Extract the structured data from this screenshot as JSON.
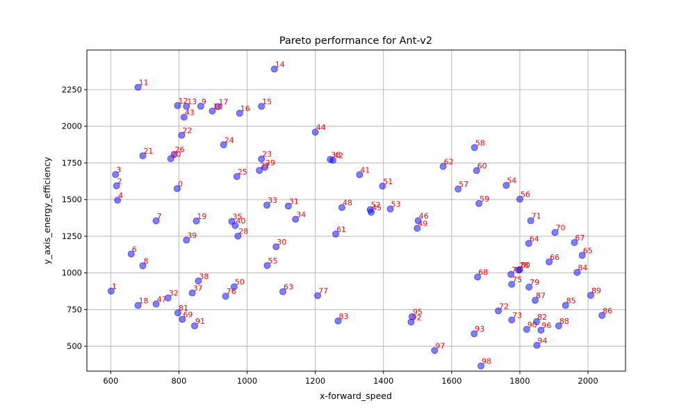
{
  "chart_data": {
    "type": "scatter",
    "title": "Pareto performance for Ant-v2",
    "xlabel": "x-forward_speed",
    "ylabel": "y_axis_energy_efficiency",
    "xlim": [
      530,
      2110
    ],
    "ylim": [
      330,
      2520
    ],
    "xticks": [
      600,
      800,
      1000,
      1200,
      1400,
      1600,
      1800,
      2000
    ],
    "yticks": [
      500,
      750,
      1000,
      1250,
      1500,
      1750,
      2000,
      2250
    ],
    "grid": true,
    "marker_color": "#0000ff",
    "label_color": "#ff0000",
    "points": [
      {
        "label": "0",
        "x": 795,
        "y": 1575
      },
      {
        "label": "1",
        "x": 601,
        "y": 876
      },
      {
        "label": "2",
        "x": 617,
        "y": 1594
      },
      {
        "label": "3",
        "x": 614,
        "y": 1671
      },
      {
        "label": "4",
        "x": 620,
        "y": 1496
      },
      {
        "label": "6",
        "x": 660,
        "y": 1129
      },
      {
        "label": "7",
        "x": 733,
        "y": 1355
      },
      {
        "label": "8",
        "x": 694,
        "y": 1049
      },
      {
        "label": "9",
        "x": 864,
        "y": 2137
      },
      {
        "label": "10",
        "x": 898,
        "y": 2104
      },
      {
        "label": "11",
        "x": 680,
        "y": 2266
      },
      {
        "label": "12",
        "x": 796,
        "y": 2141
      },
      {
        "label": "13",
        "x": 822,
        "y": 2136
      },
      {
        "label": "15",
        "x": 1042,
        "y": 2136
      },
      {
        "label": "14",
        "x": 1080,
        "y": 2390
      },
      {
        "label": "16",
        "x": 978,
        "y": 2089
      },
      {
        "label": "17",
        "x": 914,
        "y": 2134
      },
      {
        "label": "18",
        "x": 680,
        "y": 778
      },
      {
        "label": "19",
        "x": 851,
        "y": 1354
      },
      {
        "label": "20",
        "x": 776,
        "y": 1779
      },
      {
        "label": "21",
        "x": 694,
        "y": 1799
      },
      {
        "label": "22",
        "x": 808,
        "y": 1939
      },
      {
        "label": "23",
        "x": 1042,
        "y": 1777
      },
      {
        "label": "24",
        "x": 931,
        "y": 1874
      },
      {
        "label": "25",
        "x": 970,
        "y": 1657
      },
      {
        "label": "26",
        "x": 786,
        "y": 1808
      },
      {
        "label": "27",
        "x": 1036,
        "y": 1699
      },
      {
        "label": "28",
        "x": 973,
        "y": 1251
      },
      {
        "label": "29",
        "x": 1052,
        "y": 1720
      },
      {
        "label": "30",
        "x": 1085,
        "y": 1178
      },
      {
        "label": "31",
        "x": 1121,
        "y": 1456
      },
      {
        "label": "32",
        "x": 768,
        "y": 829
      },
      {
        "label": "33",
        "x": 1058,
        "y": 1462
      },
      {
        "label": "34",
        "x": 1142,
        "y": 1366
      },
      {
        "label": "35",
        "x": 955,
        "y": 1351
      },
      {
        "label": "36",
        "x": 1244,
        "y": 1774
      },
      {
        "label": "37",
        "x": 839,
        "y": 863
      },
      {
        "label": "38",
        "x": 857,
        "y": 945
      },
      {
        "label": "39",
        "x": 822,
        "y": 1224
      },
      {
        "label": "40",
        "x": 965,
        "y": 1323
      },
      {
        "label": "41",
        "x": 1330,
        "y": 1670
      },
      {
        "label": "42",
        "x": 1252,
        "y": 1768
      },
      {
        "label": "43",
        "x": 815,
        "y": 2062
      },
      {
        "label": "44",
        "x": 1200,
        "y": 1960
      },
      {
        "label": "45",
        "x": 1364,
        "y": 1414
      },
      {
        "label": "46",
        "x": 1502,
        "y": 1356
      },
      {
        "label": "47",
        "x": 733,
        "y": 788
      },
      {
        "label": "48",
        "x": 1278,
        "y": 1446
      },
      {
        "label": "49",
        "x": 1499,
        "y": 1304
      },
      {
        "label": "50",
        "x": 962,
        "y": 905
      },
      {
        "label": "51",
        "x": 1397,
        "y": 1592
      },
      {
        "label": "52",
        "x": 1361,
        "y": 1431
      },
      {
        "label": "53",
        "x": 1420,
        "y": 1436
      },
      {
        "label": "54",
        "x": 1760,
        "y": 1597
      },
      {
        "label": "55",
        "x": 1059,
        "y": 1050
      },
      {
        "label": "56",
        "x": 1800,
        "y": 1503
      },
      {
        "label": "57",
        "x": 1619,
        "y": 1572
      },
      {
        "label": "58",
        "x": 1667,
        "y": 1855
      },
      {
        "label": "59",
        "x": 1680,
        "y": 1473
      },
      {
        "label": "60",
        "x": 1673,
        "y": 1698
      },
      {
        "label": "61",
        "x": 1260,
        "y": 1265
      },
      {
        "label": "62",
        "x": 1575,
        "y": 1726
      },
      {
        "label": "63",
        "x": 1105,
        "y": 872
      },
      {
        "label": "64",
        "x": 1826,
        "y": 1201
      },
      {
        "label": "65",
        "x": 1983,
        "y": 1120
      },
      {
        "label": "66",
        "x": 1886,
        "y": 1075
      },
      {
        "label": "67",
        "x": 1960,
        "y": 1207
      },
      {
        "label": "68",
        "x": 1676,
        "y": 972
      },
      {
        "label": "69",
        "x": 810,
        "y": 683
      },
      {
        "label": "70",
        "x": 1903,
        "y": 1275
      },
      {
        "label": "71",
        "x": 1832,
        "y": 1356
      },
      {
        "label": "72",
        "x": 1737,
        "y": 741
      },
      {
        "label": "73",
        "x": 1776,
        "y": 679
      },
      {
        "label": "74",
        "x": 1774,
        "y": 990
      },
      {
        "label": "75",
        "x": 1776,
        "y": 922
      },
      {
        "label": "76",
        "x": 937,
        "y": 841
      },
      {
        "label": "77",
        "x": 1207,
        "y": 845
      },
      {
        "label": "78",
        "x": 1796,
        "y": 1020
      },
      {
        "label": "79",
        "x": 1827,
        "y": 903
      },
      {
        "label": "80",
        "x": 1800,
        "y": 1022
      },
      {
        "label": "81",
        "x": 797,
        "y": 727
      },
      {
        "label": "82",
        "x": 1849,
        "y": 667
      },
      {
        "label": "83",
        "x": 1267,
        "y": 672
      },
      {
        "label": "84",
        "x": 1968,
        "y": 1003
      },
      {
        "label": "85",
        "x": 1934,
        "y": 778
      },
      {
        "label": "86",
        "x": 2041,
        "y": 710
      },
      {
        "label": "87",
        "x": 1845,
        "y": 813
      },
      {
        "label": "88",
        "x": 1914,
        "y": 639
      },
      {
        "label": "89",
        "x": 2008,
        "y": 847
      },
      {
        "label": "90",
        "x": 1820,
        "y": 615
      },
      {
        "label": "91",
        "x": 846,
        "y": 639
      },
      {
        "label": "92",
        "x": 1481,
        "y": 665
      },
      {
        "label": "93",
        "x": 1666,
        "y": 585
      },
      {
        "label": "94",
        "x": 1850,
        "y": 506
      },
      {
        "label": "95",
        "x": 1484,
        "y": 702
      },
      {
        "label": "96",
        "x": 1862,
        "y": 609
      },
      {
        "label": "97",
        "x": 1550,
        "y": 471
      },
      {
        "label": "98",
        "x": 1686,
        "y": 365
      }
    ]
  }
}
